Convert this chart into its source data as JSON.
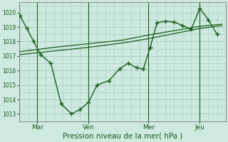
{
  "bg_color": "#ceeae0",
  "grid_color": "#a8cfc0",
  "line_color": "#1a5c1a",
  "xlabel": "Pression niveau de la mer( hPa )",
  "ylim": [
    1012.5,
    1020.7
  ],
  "yticks": [
    1013,
    1014,
    1015,
    1016,
    1017,
    1018,
    1019,
    1020
  ],
  "xtick_labels": [
    "Mar",
    "Ven",
    "Mer",
    "Jeu"
  ],
  "xtick_positions": [
    1.0,
    4.0,
    7.5,
    10.5
  ],
  "xlim": [
    -0.05,
    12.0
  ],
  "series1_x": [
    0.0,
    0.4,
    0.8,
    1.2,
    1.8,
    2.4,
    3.0,
    3.5,
    4.0,
    4.5,
    5.2,
    5.8,
    6.3,
    6.8,
    7.2,
    7.6,
    8.0,
    8.5,
    9.0,
    9.5,
    10.0,
    10.5,
    11.0,
    11.5
  ],
  "series1_y": [
    1019.8,
    1018.9,
    1018.0,
    1017.1,
    1016.5,
    1013.7,
    1013.0,
    1013.3,
    1013.8,
    1015.0,
    1015.3,
    1016.1,
    1016.5,
    1016.2,
    1016.1,
    1017.6,
    1019.3,
    1019.4,
    1019.35,
    1019.1,
    1018.85,
    1020.3,
    1019.5,
    1018.5
  ],
  "series2_x": [
    0.0,
    2.0,
    4.0,
    6.0,
    7.5,
    9.0,
    10.5,
    11.8
  ],
  "series2_y": [
    1017.1,
    1017.35,
    1017.6,
    1017.9,
    1018.2,
    1018.55,
    1018.9,
    1019.1
  ],
  "series3_x": [
    0.0,
    2.0,
    4.0,
    6.0,
    7.5,
    9.0,
    10.5,
    11.8
  ],
  "series3_y": [
    1017.3,
    1017.6,
    1017.85,
    1018.1,
    1018.45,
    1018.75,
    1019.05,
    1019.2
  ],
  "vlines_x": [
    1.0,
    4.0,
    7.5,
    10.5
  ]
}
